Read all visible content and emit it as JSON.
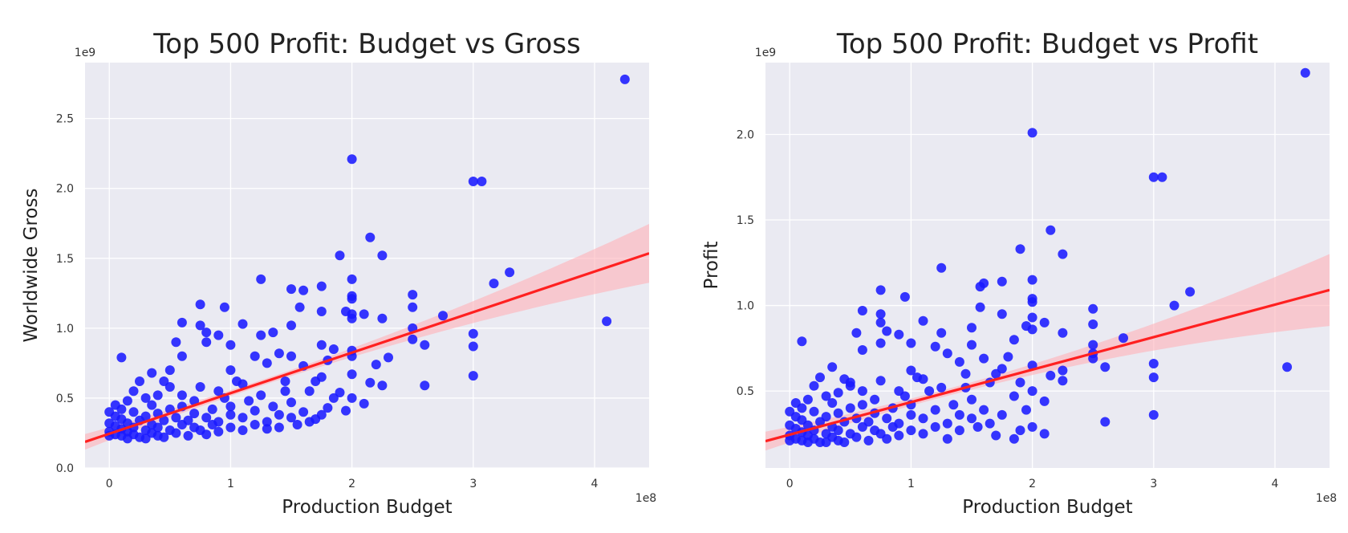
{
  "chart_data": [
    {
      "type": "scatter",
      "title": "Top 500 Profit: Budget vs Gross",
      "xlabel": "Production Budget",
      "ylabel": "Worldwide Gross",
      "x_offset_label": "1e8",
      "y_offset_label": "1e9",
      "xlim": [
        -0.2,
        4.45
      ],
      "ylim": [
        0,
        2.9
      ],
      "x_ticks": [
        0,
        1,
        2,
        3,
        4
      ],
      "x_tick_labels": [
        "0",
        "1",
        "2",
        "3",
        "4"
      ],
      "y_ticks": [
        0,
        0.5,
        1.0,
        1.5,
        2.0,
        2.5
      ],
      "y_tick_labels": [
        "0.0",
        "0.5",
        "1.0",
        "1.5",
        "2.0",
        "2.5"
      ],
      "grid": true,
      "marker_color": "#1a1aff",
      "fit_color": "#ff2020",
      "band_color": "#ffb0b8",
      "background_color": "#eaeaf2",
      "regression": {
        "intercept": 0.245,
        "slope": 0.29
      },
      "points": [
        [
          4.25,
          2.78
        ],
        [
          2.0,
          2.21
        ],
        [
          3.0,
          2.05
        ],
        [
          3.07,
          2.05
        ],
        [
          2.15,
          1.65
        ],
        [
          2.25,
          1.52
        ],
        [
          1.9,
          1.52
        ],
        [
          3.3,
          1.4
        ],
        [
          1.25,
          1.35
        ],
        [
          2.0,
          1.35
        ],
        [
          3.17,
          1.32
        ],
        [
          1.5,
          1.28
        ],
        [
          1.6,
          1.27
        ],
        [
          1.75,
          1.3
        ],
        [
          2.5,
          1.24
        ],
        [
          2.0,
          1.23
        ],
        [
          2.0,
          1.21
        ],
        [
          0.75,
          1.17
        ],
        [
          1.57,
          1.15
        ],
        [
          0.95,
          1.15
        ],
        [
          2.5,
          1.15
        ],
        [
          1.75,
          1.12
        ],
        [
          1.95,
          1.12
        ],
        [
          2.0,
          1.1
        ],
        [
          2.1,
          1.1
        ],
        [
          2.75,
          1.09
        ],
        [
          2.0,
          1.07
        ],
        [
          2.25,
          1.07
        ],
        [
          4.1,
          1.05
        ],
        [
          0.6,
          1.04
        ],
        [
          1.1,
          1.03
        ],
        [
          0.75,
          1.02
        ],
        [
          1.5,
          1.02
        ],
        [
          2.5,
          1.0
        ],
        [
          0.8,
          0.97
        ],
        [
          1.35,
          0.97
        ],
        [
          3.0,
          0.96
        ],
        [
          0.9,
          0.95
        ],
        [
          1.25,
          0.95
        ],
        [
          2.5,
          0.92
        ],
        [
          0.55,
          0.9
        ],
        [
          0.8,
          0.9
        ],
        [
          1.0,
          0.88
        ],
        [
          1.75,
          0.88
        ],
        [
          2.6,
          0.88
        ],
        [
          3.0,
          0.87
        ],
        [
          1.85,
          0.85
        ],
        [
          2.0,
          0.84
        ],
        [
          2.0,
          0.8
        ],
        [
          1.5,
          0.8
        ],
        [
          1.4,
          0.82
        ],
        [
          0.6,
          0.8
        ],
        [
          1.2,
          0.8
        ],
        [
          2.3,
          0.79
        ],
        [
          1.8,
          0.77
        ],
        [
          1.3,
          0.75
        ],
        [
          2.2,
          0.74
        ],
        [
          1.6,
          0.73
        ],
        [
          0.5,
          0.7
        ],
        [
          1.0,
          0.7
        ],
        [
          0.35,
          0.68
        ],
        [
          2.0,
          0.67
        ],
        [
          3.0,
          0.66
        ],
        [
          1.75,
          0.65
        ],
        [
          0.25,
          0.62
        ],
        [
          0.45,
          0.62
        ],
        [
          1.45,
          0.62
        ],
        [
          2.15,
          0.61
        ],
        [
          2.6,
          0.59
        ],
        [
          1.1,
          0.6
        ],
        [
          0.75,
          0.58
        ],
        [
          2.25,
          0.59
        ],
        [
          0.2,
          0.55
        ],
        [
          0.9,
          0.55
        ],
        [
          1.65,
          0.55
        ],
        [
          1.9,
          0.54
        ],
        [
          0.4,
          0.52
        ],
        [
          1.25,
          0.52
        ],
        [
          2.0,
          0.5
        ],
        [
          0.1,
          0.79
        ],
        [
          0.3,
          0.5
        ],
        [
          0.15,
          0.48
        ],
        [
          0.7,
          0.48
        ],
        [
          1.5,
          0.47
        ],
        [
          2.1,
          0.46
        ],
        [
          0.05,
          0.45
        ],
        [
          0.35,
          0.45
        ],
        [
          0.6,
          0.44
        ],
        [
          1.0,
          0.44
        ],
        [
          1.35,
          0.44
        ],
        [
          1.8,
          0.43
        ],
        [
          0.1,
          0.42
        ],
        [
          0.5,
          0.42
        ],
        [
          0.85,
          0.42
        ],
        [
          1.2,
          0.41
        ],
        [
          1.6,
          0.4
        ],
        [
          1.95,
          0.41
        ],
        [
          0.0,
          0.4
        ],
        [
          0.2,
          0.4
        ],
        [
          0.4,
          0.39
        ],
        [
          0.7,
          0.39
        ],
        [
          1.0,
          0.38
        ],
        [
          1.4,
          0.38
        ],
        [
          1.75,
          0.38
        ],
        [
          0.05,
          0.37
        ],
        [
          0.3,
          0.37
        ],
        [
          0.55,
          0.36
        ],
        [
          0.8,
          0.36
        ],
        [
          1.1,
          0.36
        ],
        [
          1.5,
          0.36
        ],
        [
          0.1,
          0.35
        ],
        [
          0.25,
          0.34
        ],
        [
          0.45,
          0.34
        ],
        [
          0.65,
          0.34
        ],
        [
          0.9,
          0.33
        ],
        [
          1.3,
          0.33
        ],
        [
          1.65,
          0.33
        ],
        [
          0.0,
          0.32
        ],
        [
          0.15,
          0.32
        ],
        [
          0.35,
          0.31
        ],
        [
          0.6,
          0.31
        ],
        [
          0.85,
          0.31
        ],
        [
          1.2,
          0.31
        ],
        [
          1.55,
          0.31
        ],
        [
          0.05,
          0.3
        ],
        [
          0.2,
          0.29
        ],
        [
          0.4,
          0.29
        ],
        [
          0.7,
          0.29
        ],
        [
          1.0,
          0.29
        ],
        [
          1.4,
          0.29
        ],
        [
          0.1,
          0.28
        ],
        [
          0.3,
          0.27
        ],
        [
          0.5,
          0.27
        ],
        [
          0.75,
          0.27
        ],
        [
          1.1,
          0.27
        ],
        [
          0.0,
          0.26
        ],
        [
          0.15,
          0.26
        ],
        [
          0.35,
          0.25
        ],
        [
          0.55,
          0.25
        ],
        [
          0.9,
          0.26
        ],
        [
          0.05,
          0.24
        ],
        [
          0.2,
          0.24
        ],
        [
          0.4,
          0.23
        ],
        [
          0.65,
          0.23
        ],
        [
          0.1,
          0.23
        ],
        [
          0.25,
          0.22
        ],
        [
          0.45,
          0.22
        ],
        [
          0.0,
          0.23
        ],
        [
          0.15,
          0.21
        ],
        [
          0.3,
          0.21
        ],
        [
          0.8,
          0.24
        ],
        [
          1.3,
          0.28
        ],
        [
          1.7,
          0.35
        ],
        [
          1.85,
          0.5
        ],
        [
          1.15,
          0.48
        ],
        [
          0.95,
          0.5
        ],
        [
          0.6,
          0.52
        ],
        [
          1.45,
          0.55
        ],
        [
          1.05,
          0.62
        ],
        [
          0.5,
          0.58
        ],
        [
          1.7,
          0.62
        ]
      ]
    },
    {
      "type": "scatter",
      "title": "Top 500 Profit: Budget vs Profit",
      "xlabel": "Production Budget",
      "ylabel": "Profit",
      "x_offset_label": "1e8",
      "y_offset_label": "1e9",
      "xlim": [
        -0.2,
        4.45
      ],
      "ylim": [
        0.05,
        2.42
      ],
      "x_ticks": [
        0,
        1,
        2,
        3,
        4
      ],
      "x_tick_labels": [
        "0",
        "1",
        "2",
        "3",
        "4"
      ],
      "y_ticks": [
        0.5,
        1.0,
        1.5,
        2.0
      ],
      "y_tick_labels": [
        "0.5",
        "1.0",
        "1.5",
        "2.0"
      ],
      "grid": true,
      "marker_color": "#1a1aff",
      "fit_color": "#ff2020",
      "band_color": "#ffb0b8",
      "background_color": "#eaeaf2",
      "regression": {
        "intercept": 0.245,
        "slope": 0.19
      },
      "points": [
        [
          4.25,
          2.36
        ],
        [
          2.0,
          2.01
        ],
        [
          3.0,
          1.75
        ],
        [
          3.07,
          1.75
        ],
        [
          2.15,
          1.44
        ],
        [
          1.9,
          1.33
        ],
        [
          2.25,
          1.3
        ],
        [
          1.25,
          1.22
        ],
        [
          2.0,
          1.15
        ],
        [
          1.6,
          1.13
        ],
        [
          1.75,
          1.14
        ],
        [
          1.57,
          1.11
        ],
        [
          0.75,
          1.09
        ],
        [
          3.3,
          1.08
        ],
        [
          0.95,
          1.05
        ],
        [
          2.0,
          1.04
        ],
        [
          2.0,
          1.02
        ],
        [
          3.17,
          1.0
        ],
        [
          1.57,
          0.99
        ],
        [
          2.5,
          0.98
        ],
        [
          0.6,
          0.97
        ],
        [
          1.75,
          0.95
        ],
        [
          0.75,
          0.95
        ],
        [
          2.0,
          0.93
        ],
        [
          0.75,
          0.9
        ],
        [
          2.1,
          0.9
        ],
        [
          1.1,
          0.91
        ],
        [
          2.5,
          0.89
        ],
        [
          1.95,
          0.88
        ],
        [
          1.5,
          0.87
        ],
        [
          2.0,
          0.86
        ],
        [
          0.8,
          0.85
        ],
        [
          1.25,
          0.84
        ],
        [
          2.25,
          0.84
        ],
        [
          0.55,
          0.84
        ],
        [
          0.9,
          0.83
        ],
        [
          2.75,
          0.81
        ],
        [
          1.85,
          0.8
        ],
        [
          0.1,
          0.79
        ],
        [
          0.75,
          0.78
        ],
        [
          1.0,
          0.78
        ],
        [
          2.5,
          0.77
        ],
        [
          1.5,
          0.77
        ],
        [
          1.2,
          0.76
        ],
        [
          0.6,
          0.74
        ],
        [
          2.5,
          0.72
        ],
        [
          1.3,
          0.72
        ],
        [
          1.8,
          0.7
        ],
        [
          1.6,
          0.69
        ],
        [
          2.5,
          0.69
        ],
        [
          1.4,
          0.67
        ],
        [
          3.0,
          0.66
        ],
        [
          2.0,
          0.65
        ],
        [
          2.6,
          0.64
        ],
        [
          4.1,
          0.64
        ],
        [
          1.75,
          0.63
        ],
        [
          0.35,
          0.64
        ],
        [
          2.25,
          0.62
        ],
        [
          1.0,
          0.62
        ],
        [
          1.45,
          0.6
        ],
        [
          2.15,
          0.59
        ],
        [
          3.0,
          0.58
        ],
        [
          0.25,
          0.58
        ],
        [
          0.45,
          0.57
        ],
        [
          1.1,
          0.57
        ],
        [
          2.25,
          0.56
        ],
        [
          0.75,
          0.56
        ],
        [
          1.65,
          0.55
        ],
        [
          1.9,
          0.55
        ],
        [
          0.2,
          0.53
        ],
        [
          0.5,
          0.53
        ],
        [
          1.25,
          0.52
        ],
        [
          2.0,
          0.5
        ],
        [
          0.9,
          0.5
        ],
        [
          0.4,
          0.49
        ],
        [
          0.3,
          0.47
        ],
        [
          1.85,
          0.47
        ],
        [
          0.15,
          0.45
        ],
        [
          0.7,
          0.45
        ],
        [
          1.5,
          0.45
        ],
        [
          2.1,
          0.44
        ],
        [
          0.05,
          0.43
        ],
        [
          0.35,
          0.43
        ],
        [
          0.6,
          0.42
        ],
        [
          1.0,
          0.42
        ],
        [
          1.35,
          0.42
        ],
        [
          0.1,
          0.4
        ],
        [
          0.5,
          0.4
        ],
        [
          0.85,
          0.4
        ],
        [
          1.2,
          0.39
        ],
        [
          1.6,
          0.39
        ],
        [
          1.95,
          0.39
        ],
        [
          0.0,
          0.38
        ],
        [
          0.2,
          0.38
        ],
        [
          0.4,
          0.37
        ],
        [
          0.7,
          0.37
        ],
        [
          1.0,
          0.36
        ],
        [
          1.4,
          0.36
        ],
        [
          1.75,
          0.36
        ],
        [
          3.0,
          0.36
        ],
        [
          0.05,
          0.35
        ],
        [
          0.3,
          0.35
        ],
        [
          0.55,
          0.34
        ],
        [
          0.8,
          0.34
        ],
        [
          1.1,
          0.34
        ],
        [
          1.5,
          0.34
        ],
        [
          0.1,
          0.33
        ],
        [
          2.6,
          0.32
        ],
        [
          0.25,
          0.32
        ],
        [
          0.45,
          0.32
        ],
        [
          0.65,
          0.32
        ],
        [
          0.9,
          0.31
        ],
        [
          1.3,
          0.31
        ],
        [
          1.65,
          0.31
        ],
        [
          0.0,
          0.3
        ],
        [
          0.15,
          0.3
        ],
        [
          0.35,
          0.29
        ],
        [
          0.6,
          0.29
        ],
        [
          0.85,
          0.29
        ],
        [
          1.2,
          0.29
        ],
        [
          1.55,
          0.29
        ],
        [
          2.0,
          0.29
        ],
        [
          0.05,
          0.28
        ],
        [
          0.2,
          0.27
        ],
        [
          0.4,
          0.27
        ],
        [
          0.7,
          0.27
        ],
        [
          1.0,
          0.27
        ],
        [
          1.4,
          0.27
        ],
        [
          1.9,
          0.27
        ],
        [
          0.1,
          0.26
        ],
        [
          0.3,
          0.25
        ],
        [
          0.5,
          0.25
        ],
        [
          0.75,
          0.25
        ],
        [
          1.1,
          0.25
        ],
        [
          2.1,
          0.25
        ],
        [
          0.0,
          0.24
        ],
        [
          0.15,
          0.24
        ],
        [
          0.35,
          0.23
        ],
        [
          0.55,
          0.23
        ],
        [
          0.9,
          0.24
        ],
        [
          1.7,
          0.24
        ],
        [
          0.05,
          0.22
        ],
        [
          0.2,
          0.22
        ],
        [
          0.4,
          0.21
        ],
        [
          0.65,
          0.21
        ],
        [
          0.1,
          0.21
        ],
        [
          0.25,
          0.2
        ],
        [
          0.45,
          0.2
        ],
        [
          0.0,
          0.21
        ],
        [
          0.15,
          0.2
        ],
        [
          0.3,
          0.2
        ],
        [
          0.8,
          0.22
        ],
        [
          1.3,
          0.22
        ],
        [
          1.85,
          0.22
        ],
        [
          1.15,
          0.5
        ],
        [
          0.95,
          0.47
        ],
        [
          0.6,
          0.5
        ],
        [
          1.45,
          0.52
        ],
        [
          1.05,
          0.58
        ],
        [
          0.5,
          0.55
        ],
        [
          1.7,
          0.6
        ]
      ]
    }
  ]
}
